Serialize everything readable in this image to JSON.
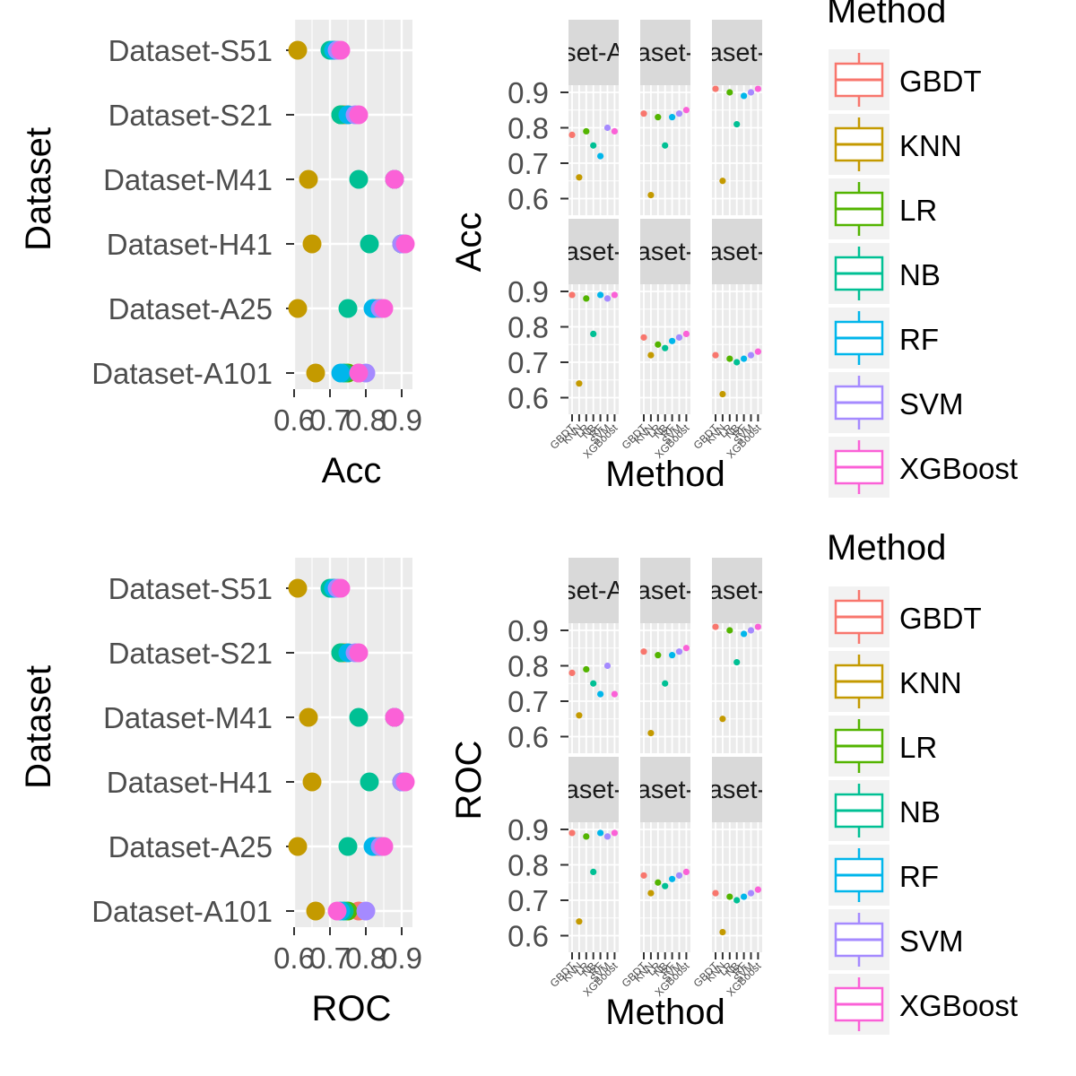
{
  "colors": {
    "GBDT": "#F8766D",
    "KNN": "#C49A00",
    "LR": "#53B400",
    "NB": "#00C094",
    "RF": "#00B6EB",
    "SVM": "#A58AFF",
    "XGBoost": "#FB61D7",
    "panel_bg": "#EBEBEB",
    "strip_bg": "#D9D9D9",
    "grid": "#FFFFFF"
  },
  "methods": [
    "GBDT",
    "KNN",
    "LR",
    "NB",
    "RF",
    "SVM",
    "XGBoost"
  ],
  "chart_data": [
    {
      "type": "scatter",
      "id": "dot-acc",
      "xlabel": "Acc",
      "ylabel": "Dataset",
      "xlim": [
        0.6,
        0.9
      ],
      "xticks": [
        "0.6",
        "0.7",
        "0.8",
        "0.9"
      ],
      "categories": [
        "Dataset-S51",
        "Dataset-S21",
        "Dataset-M41",
        "Dataset-H41",
        "Dataset-A25",
        "Dataset-A101"
      ],
      "series": [
        {
          "name": "GBDT",
          "values": [
            0.72,
            0.75,
            0.88,
            0.9,
            0.83,
            0.78
          ]
        },
        {
          "name": "KNN",
          "values": [
            0.61,
            0.74,
            0.64,
            0.65,
            0.61,
            0.66
          ]
        },
        {
          "name": "LR",
          "values": [
            0.71,
            0.73,
            0.88,
            0.9,
            0.84,
            0.75
          ]
        },
        {
          "name": "NB",
          "values": [
            0.7,
            0.73,
            0.78,
            0.81,
            0.75,
            0.74
          ]
        },
        {
          "name": "RF",
          "values": [
            0.71,
            0.75,
            0.88,
            0.9,
            0.82,
            0.73
          ]
        },
        {
          "name": "SVM",
          "values": [
            0.72,
            0.77,
            0.88,
            0.9,
            0.84,
            0.8
          ]
        },
        {
          "name": "XGBoost",
          "values": [
            0.73,
            0.78,
            0.88,
            0.91,
            0.85,
            0.78
          ]
        }
      ]
    },
    {
      "type": "scatter",
      "id": "facet-acc",
      "xlabel": "Method",
      "ylabel": "Acc",
      "ylim": [
        0.6,
        0.9
      ],
      "yticks": [
        "0.9",
        "0.8",
        "0.7",
        "0.6"
      ],
      "strip_labels": [
        "set-A",
        "aset-",
        "aset-",
        "aset-",
        "aset-",
        "aset-"
      ],
      "panels": [
        {
          "values": [
            0.78,
            0.66,
            0.79,
            0.75,
            0.72,
            0.8,
            0.79
          ]
        },
        {
          "values": [
            0.84,
            0.61,
            0.83,
            0.75,
            0.83,
            0.84,
            0.85
          ]
        },
        {
          "values": [
            0.91,
            0.65,
            0.9,
            0.81,
            0.89,
            0.9,
            0.91
          ]
        },
        {
          "values": [
            0.89,
            0.64,
            0.88,
            0.78,
            0.89,
            0.88,
            0.89
          ]
        },
        {
          "values": [
            0.77,
            0.72,
            0.75,
            0.74,
            0.76,
            0.77,
            0.78
          ]
        },
        {
          "values": [
            0.72,
            0.61,
            0.71,
            0.7,
            0.71,
            0.72,
            0.73
          ]
        }
      ]
    },
    {
      "type": "scatter",
      "id": "dot-roc",
      "xlabel": "ROC",
      "ylabel": "Dataset",
      "xlim": [
        0.6,
        0.9
      ],
      "xticks": [
        "0.6",
        "0.7",
        "0.8",
        "0.9"
      ],
      "categories": [
        "Dataset-S51",
        "Dataset-S21",
        "Dataset-M41",
        "Dataset-H41",
        "Dataset-A25",
        "Dataset-A101"
      ],
      "series": [
        {
          "name": "GBDT",
          "values": [
            0.72,
            0.75,
            0.88,
            0.9,
            0.83,
            0.78
          ]
        },
        {
          "name": "KNN",
          "values": [
            0.61,
            0.74,
            0.64,
            0.65,
            0.61,
            0.66
          ]
        },
        {
          "name": "LR",
          "values": [
            0.71,
            0.73,
            0.88,
            0.9,
            0.84,
            0.75
          ]
        },
        {
          "name": "NB",
          "values": [
            0.7,
            0.73,
            0.78,
            0.81,
            0.75,
            0.74
          ]
        },
        {
          "name": "RF",
          "values": [
            0.71,
            0.75,
            0.88,
            0.9,
            0.82,
            0.73
          ]
        },
        {
          "name": "SVM",
          "values": [
            0.72,
            0.77,
            0.88,
            0.9,
            0.84,
            0.8
          ]
        },
        {
          "name": "XGBoost",
          "values": [
            0.73,
            0.78,
            0.88,
            0.91,
            0.85,
            0.72
          ]
        }
      ]
    },
    {
      "type": "scatter",
      "id": "facet-roc",
      "xlabel": "Method",
      "ylabel": "ROC",
      "ylim": [
        0.6,
        0.9
      ],
      "yticks": [
        "0.9",
        "0.8",
        "0.7",
        "0.6"
      ],
      "strip_labels": [
        "set-A",
        "aset-",
        "aset-",
        "aset-",
        "aset-",
        "aset-"
      ],
      "panels": [
        {
          "values": [
            0.78,
            0.66,
            0.79,
            0.75,
            0.72,
            0.8,
            0.72
          ]
        },
        {
          "values": [
            0.84,
            0.61,
            0.83,
            0.75,
            0.83,
            0.84,
            0.85
          ]
        },
        {
          "values": [
            0.91,
            0.65,
            0.9,
            0.81,
            0.89,
            0.9,
            0.91
          ]
        },
        {
          "values": [
            0.89,
            0.64,
            0.88,
            0.78,
            0.89,
            0.88,
            0.89
          ]
        },
        {
          "values": [
            0.77,
            0.72,
            0.75,
            0.74,
            0.76,
            0.77,
            0.78
          ]
        },
        {
          "values": [
            0.72,
            0.61,
            0.71,
            0.7,
            0.71,
            0.72,
            0.73
          ]
        }
      ]
    }
  ],
  "legends": [
    {
      "title": "Method",
      "items": [
        "GBDT",
        "KNN",
        "LR",
        "NB",
        "RF",
        "SVM",
        "XGBoost"
      ]
    },
    {
      "title": "Method",
      "items": [
        "GBDT",
        "KNN",
        "LR",
        "NB",
        "RF",
        "SVM",
        "XGBoost"
      ]
    }
  ]
}
